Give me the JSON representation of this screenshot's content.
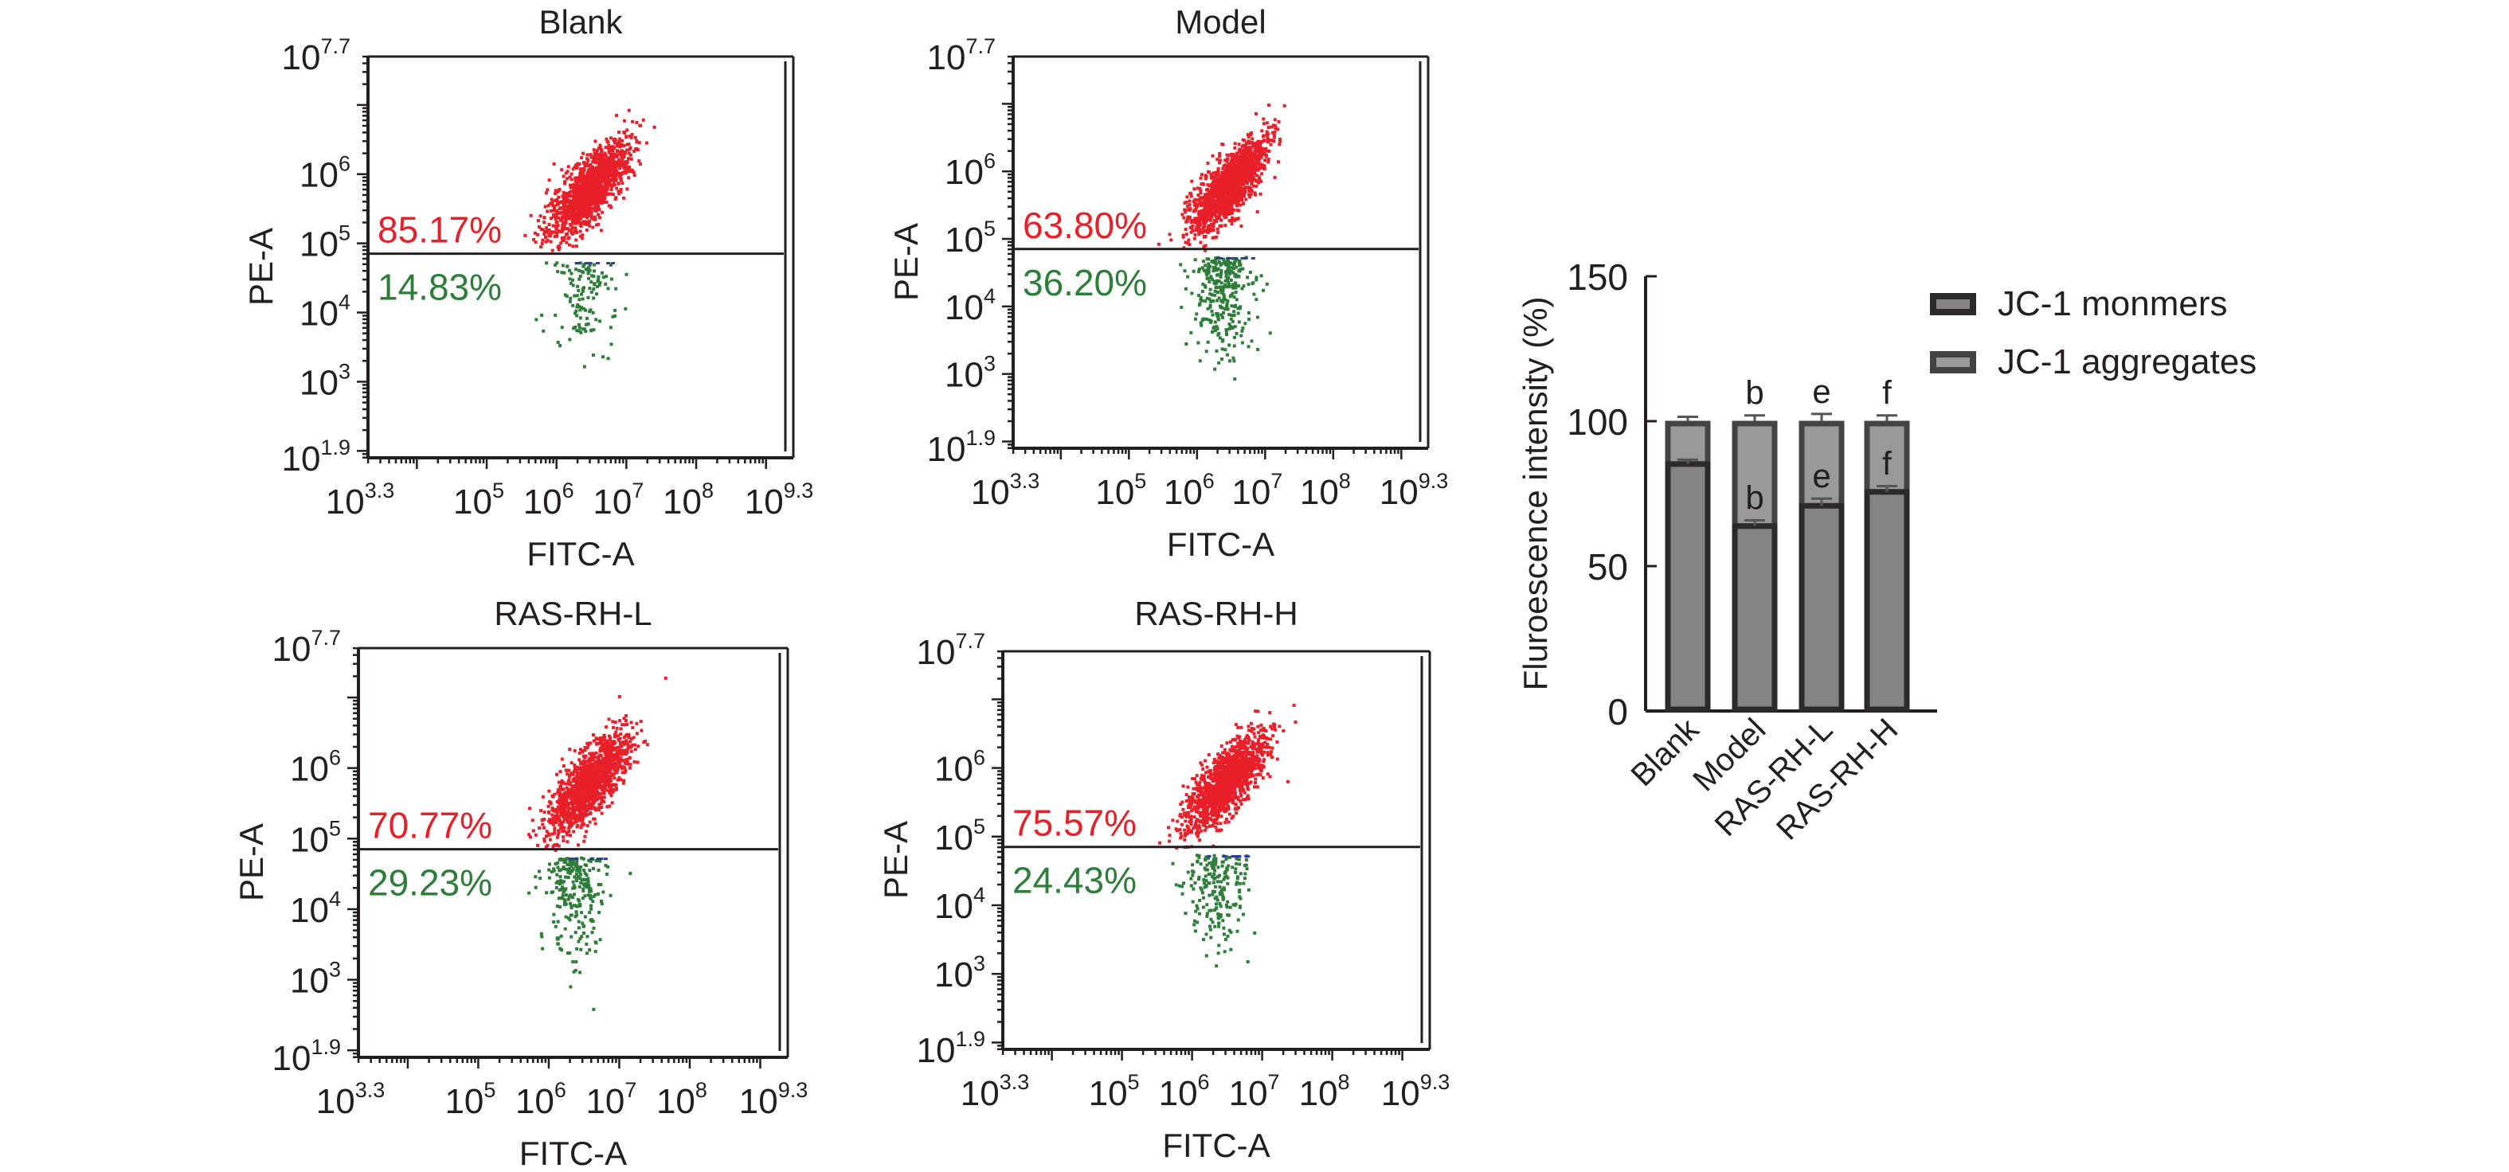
{
  "colors": {
    "red_population": "#e8202a",
    "green_population": "#2e7d3a",
    "blue_events": "#2b3a9c",
    "axis": "#231f20",
    "monomer_fill": "#858384",
    "monomer_border": "#2d2a2b",
    "aggregate_fill": "#9a9899",
    "aggregate_border": "#444243"
  },
  "chart_data": [
    {
      "type": "scatter",
      "title": "Blank",
      "xlabel": "FITC-A",
      "ylabel": "PE-A",
      "x_scale": "log",
      "y_scale": "log",
      "xlim_log10": [
        3.3,
        9.3
      ],
      "ylim_log10": [
        1.9,
        7.7
      ],
      "x_ticks": [
        {
          "base": "10",
          "exp": "3.3"
        },
        {
          "base": "10",
          "exp": "5"
        },
        {
          "base": "10",
          "exp": "6"
        },
        {
          "base": "10",
          "exp": "7"
        },
        {
          "base": "10",
          "exp": "8"
        },
        {
          "base": "10",
          "exp": "9.3"
        }
      ],
      "y_ticks": [
        {
          "base": "10",
          "exp": "7.7"
        },
        {
          "base": "10",
          "exp": "6"
        },
        {
          "base": "10",
          "exp": "5"
        },
        {
          "base": "10",
          "exp": "4"
        },
        {
          "base": "10",
          "exp": "3"
        },
        {
          "base": "10",
          "exp": "1.9"
        }
      ],
      "gate_log10": 4.85,
      "upper_label": "85.17%",
      "lower_label": "14.83%",
      "upper_fraction": 0.8517,
      "cluster": {
        "center_x_log10": 6.5,
        "center_y_log10": 5.8
      }
    },
    {
      "type": "scatter",
      "title": "Model",
      "xlabel": "FITC-A",
      "ylabel": "PE-A",
      "x_scale": "log",
      "y_scale": "log",
      "xlim_log10": [
        3.3,
        9.3
      ],
      "ylim_log10": [
        1.9,
        7.7
      ],
      "x_ticks": [
        {
          "base": "10",
          "exp": "3.3"
        },
        {
          "base": "10",
          "exp": "5"
        },
        {
          "base": "10",
          "exp": "6"
        },
        {
          "base": "10",
          "exp": "7"
        },
        {
          "base": "10",
          "exp": "8"
        },
        {
          "base": "10",
          "exp": "9.3"
        }
      ],
      "y_ticks": [
        {
          "base": "10",
          "exp": "7.7"
        },
        {
          "base": "10",
          "exp": "6"
        },
        {
          "base": "10",
          "exp": "5"
        },
        {
          "base": "10",
          "exp": "4"
        },
        {
          "base": "10",
          "exp": "3"
        },
        {
          "base": "10",
          "exp": "1.9"
        }
      ],
      "gate_log10": 4.85,
      "upper_label": "63.80%",
      "lower_label": "36.20%",
      "upper_fraction": 0.638,
      "cluster": {
        "center_x_log10": 6.5,
        "center_y_log10": 5.8
      }
    },
    {
      "type": "scatter",
      "title": "RAS-RH-L",
      "xlabel": "FITC-A",
      "ylabel": "PE-A",
      "x_scale": "log",
      "y_scale": "log",
      "xlim_log10": [
        3.3,
        9.3
      ],
      "ylim_log10": [
        1.9,
        7.7
      ],
      "x_ticks": [
        {
          "base": "10",
          "exp": "3.3"
        },
        {
          "base": "10",
          "exp": "5"
        },
        {
          "base": "10",
          "exp": "6"
        },
        {
          "base": "10",
          "exp": "7"
        },
        {
          "base": "10",
          "exp": "8"
        },
        {
          "base": "10",
          "exp": "9.3"
        }
      ],
      "y_ticks": [
        {
          "base": "10",
          "exp": "7.7"
        },
        {
          "base": "10",
          "exp": "6"
        },
        {
          "base": "10",
          "exp": "5"
        },
        {
          "base": "10",
          "exp": "4"
        },
        {
          "base": "10",
          "exp": "3"
        },
        {
          "base": "10",
          "exp": "1.9"
        }
      ],
      "gate_log10": 4.85,
      "upper_label": "70.77%",
      "lower_label": "29.23%",
      "upper_fraction": 0.7077,
      "cluster": {
        "center_x_log10": 6.6,
        "center_y_log10": 5.8
      }
    },
    {
      "type": "scatter",
      "title": "RAS-RH-H",
      "xlabel": "FITC-A",
      "ylabel": "PE-A",
      "x_scale": "log",
      "y_scale": "log",
      "xlim_log10": [
        3.3,
        9.3
      ],
      "ylim_log10": [
        1.9,
        7.7
      ],
      "x_ticks": [
        {
          "base": "10",
          "exp": "3.3"
        },
        {
          "base": "10",
          "exp": "5"
        },
        {
          "base": "10",
          "exp": "6"
        },
        {
          "base": "10",
          "exp": "7"
        },
        {
          "base": "10",
          "exp": "8"
        },
        {
          "base": "10",
          "exp": "9.3"
        }
      ],
      "y_ticks": [
        {
          "base": "10",
          "exp": "7.7"
        },
        {
          "base": "10",
          "exp": "6"
        },
        {
          "base": "10",
          "exp": "5"
        },
        {
          "base": "10",
          "exp": "4"
        },
        {
          "base": "10",
          "exp": "3"
        },
        {
          "base": "10",
          "exp": "1.9"
        }
      ],
      "gate_log10": 4.85,
      "upper_label": "75.57%",
      "lower_label": "24.43%",
      "upper_fraction": 0.7557,
      "cluster": {
        "center_x_log10": 6.5,
        "center_y_log10": 5.8
      }
    },
    {
      "type": "bar",
      "stacked": true,
      "title": "",
      "xlabel": "",
      "ylabel": "Fluroescence intensity (%)",
      "ylim": [
        0,
        150
      ],
      "y_ticks": [
        0,
        50,
        100,
        150
      ],
      "categories": [
        "Blank",
        "Model",
        "RAS-RH-L",
        "RAS-RH-H"
      ],
      "series": [
        {
          "name": "JC-1 monmers",
          "values": [
            85.2,
            63.8,
            70.8,
            75.6
          ],
          "errors": [
            1.5,
            2.0,
            2.5,
            2.0
          ]
        },
        {
          "name": "JC-1 aggregates",
          "values": [
            14.8,
            36.2,
            29.2,
            24.4
          ],
          "errors": [
            1.5,
            2.0,
            2.5,
            2.0
          ]
        }
      ],
      "annotations": [
        {
          "category": "Model",
          "upper": "b",
          "lower": "b"
        },
        {
          "category": "RAS-RH-L",
          "upper": "e",
          "lower": "e"
        },
        {
          "category": "RAS-RH-H",
          "upper": "f",
          "lower": "f"
        }
      ],
      "legend": {
        "position": "top-right",
        "entries": [
          "JC-1 monmers",
          "JC-1 aggregates"
        ]
      }
    }
  ]
}
